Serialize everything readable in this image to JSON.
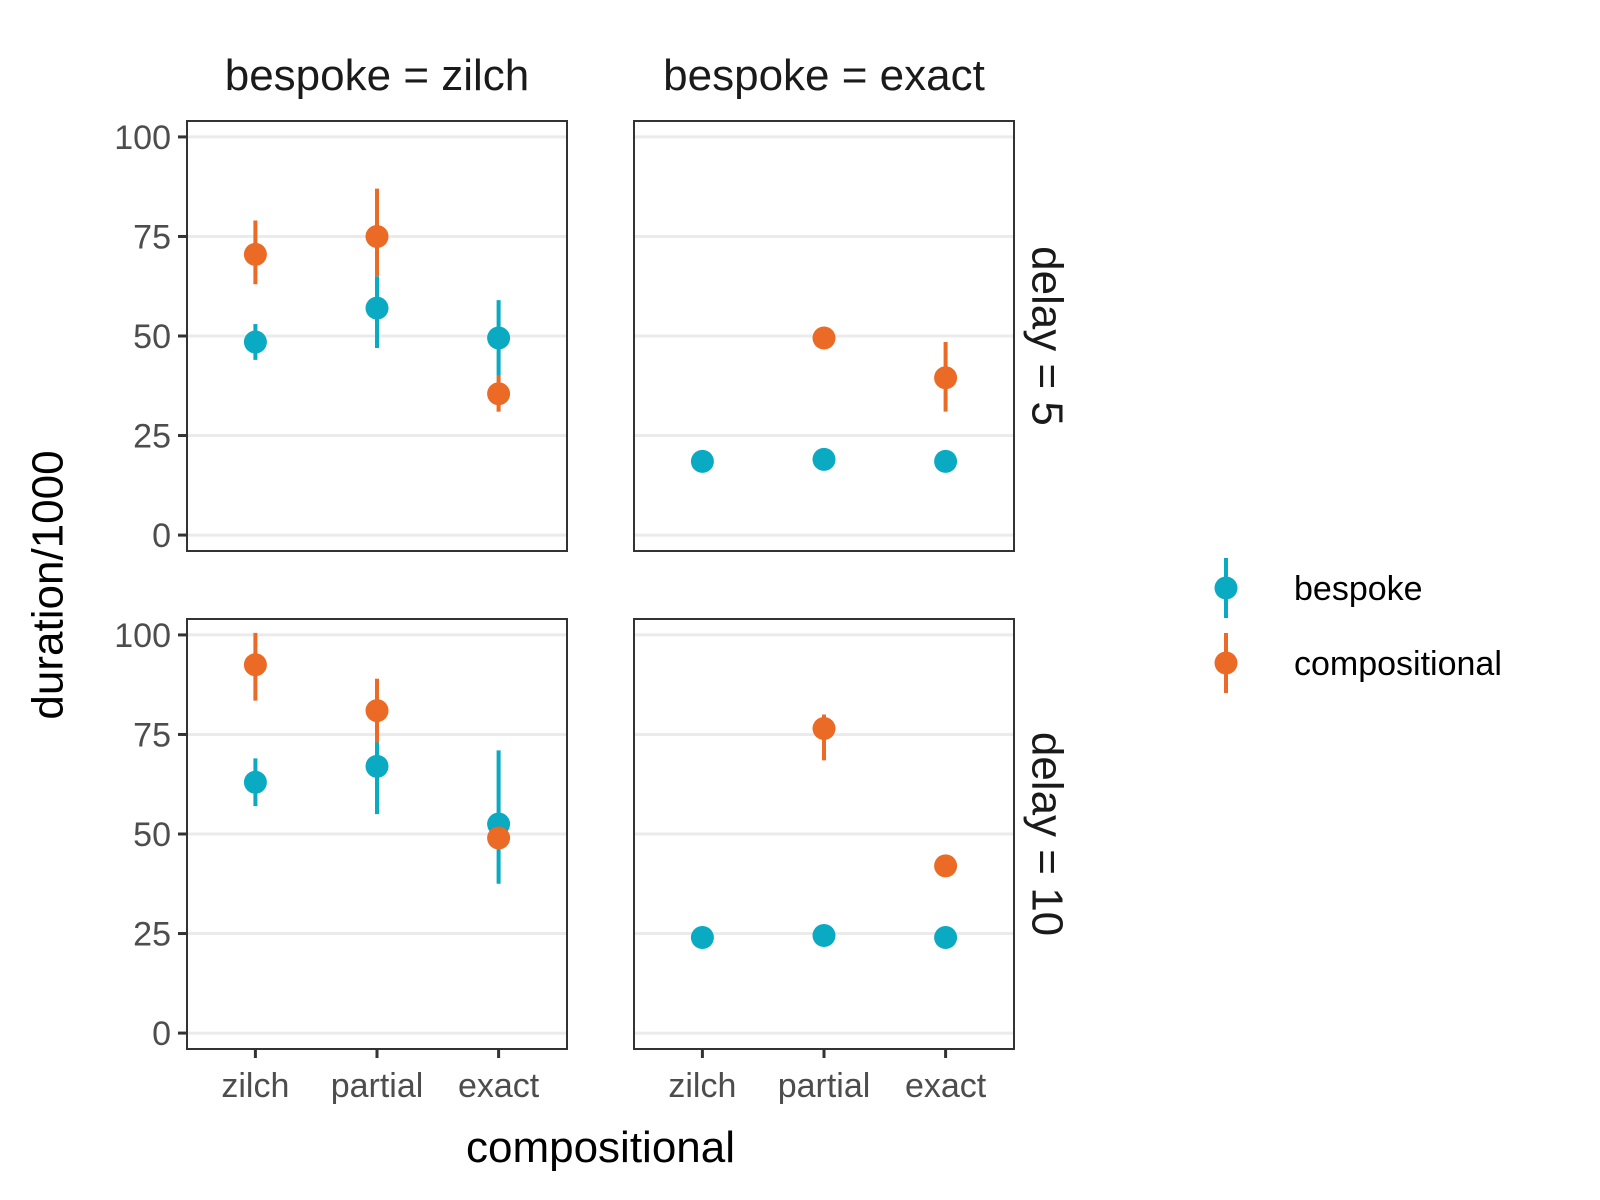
{
  "chart_data": {
    "type": "scatter",
    "xlabel": "compositional",
    "ylabel": "duration/1000",
    "categories": [
      "zilch",
      "partial",
      "exact"
    ],
    "ylim": [
      -4,
      104
    ],
    "yticks": [
      0,
      25,
      50,
      75,
      100
    ],
    "col_facets": [
      "bespoke = zilch",
      "bespoke = exact"
    ],
    "row_facets": [
      "delay = 5",
      "delay = 10"
    ],
    "grid": "horizontal major lines",
    "legend_position": "right",
    "series_colors": {
      "bespoke": "#0aaac2",
      "compositional": "#ea6a26"
    },
    "legend": [
      {
        "name": "bespoke",
        "color": "#0aaac2"
      },
      {
        "name": "compositional",
        "color": "#ea6a26"
      }
    ],
    "panels": [
      {
        "row": 0,
        "col": 0,
        "series": [
          {
            "name": "bespoke",
            "points": [
              {
                "x": "zilch",
                "y": 48.5,
                "low": 44,
                "high": 53
              },
              {
                "x": "partial",
                "y": 57,
                "low": 47,
                "high": 65
              },
              {
                "x": "exact",
                "y": 49.5,
                "low": 40,
                "high": 59
              }
            ]
          },
          {
            "name": "compositional",
            "points": [
              {
                "x": "zilch",
                "y": 70.5,
                "low": 63,
                "high": 79
              },
              {
                "x": "partial",
                "y": 75,
                "low": 65,
                "high": 87
              },
              {
                "x": "exact",
                "y": 35.5,
                "low": 31,
                "high": 40
              }
            ]
          }
        ]
      },
      {
        "row": 0,
        "col": 1,
        "series": [
          {
            "name": "bespoke",
            "points": [
              {
                "x": "zilch",
                "y": 18.5,
                "low": 18,
                "high": 19
              },
              {
                "x": "partial",
                "y": 19,
                "low": 18.5,
                "high": 19.5
              },
              {
                "x": "exact",
                "y": 18.5,
                "low": 18,
                "high": 19
              }
            ]
          },
          {
            "name": "compositional",
            "points": [
              {
                "x": "partial",
                "y": 49.5,
                "low": 47,
                "high": 52
              },
              {
                "x": "exact",
                "y": 39.5,
                "low": 31,
                "high": 48.5
              }
            ]
          }
        ]
      },
      {
        "row": 1,
        "col": 0,
        "series": [
          {
            "name": "bespoke",
            "points": [
              {
                "x": "zilch",
                "y": 63,
                "low": 57,
                "high": 69
              },
              {
                "x": "partial",
                "y": 67,
                "low": 55,
                "high": 75
              },
              {
                "x": "exact",
                "y": 52.5,
                "low": 37.5,
                "high": 71
              }
            ]
          },
          {
            "name": "compositional",
            "points": [
              {
                "x": "zilch",
                "y": 92.5,
                "low": 83.5,
                "high": 100.5
              },
              {
                "x": "partial",
                "y": 81,
                "low": 73,
                "high": 89
              },
              {
                "x": "exact",
                "y": 49,
                "low": 46,
                "high": 52
              }
            ]
          }
        ]
      },
      {
        "row": 1,
        "col": 1,
        "series": [
          {
            "name": "bespoke",
            "points": [
              {
                "x": "zilch",
                "y": 24,
                "low": 23.5,
                "high": 24.5
              },
              {
                "x": "partial",
                "y": 24.5,
                "low": 24,
                "high": 25
              },
              {
                "x": "exact",
                "y": 24,
                "low": 23.5,
                "high": 24.5
              }
            ]
          },
          {
            "name": "compositional",
            "points": [
              {
                "x": "partial",
                "y": 76.5,
                "low": 68.5,
                "high": 80
              },
              {
                "x": "exact",
                "y": 42,
                "low": 40,
                "high": 44
              }
            ]
          }
        ]
      }
    ]
  }
}
